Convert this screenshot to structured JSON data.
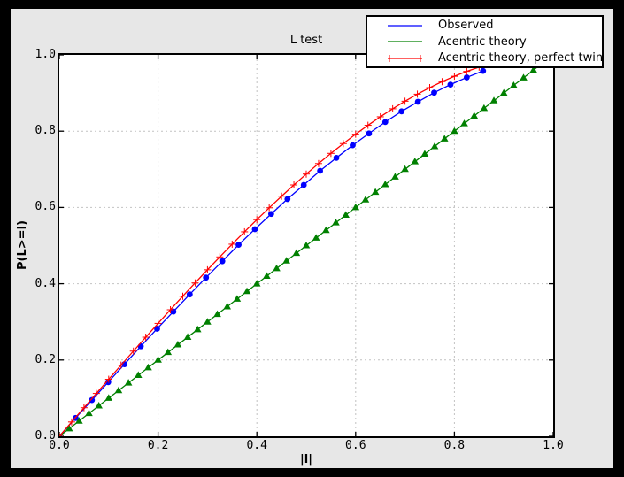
{
  "window": {
    "background": "#000000",
    "figure_background": "#e7e7e7",
    "plot_background": "#ffffff",
    "axis_color": "#000000"
  },
  "chart_data": {
    "type": "line",
    "title": "L test",
    "xlabel": "|l|",
    "ylabel": "P(L>=l)",
    "xlim": [
      0.0,
      1.0
    ],
    "ylim": [
      0.0,
      1.0
    ],
    "x_ticks": [
      0.0,
      0.2,
      0.4,
      0.6,
      0.8,
      1.0
    ],
    "y_ticks": [
      0.0,
      0.2,
      0.4,
      0.6,
      0.8,
      1.0
    ],
    "x_tick_labels": [
      "0.0",
      "0.2",
      "0.4",
      "0.6",
      "0.8",
      "1.0"
    ],
    "y_tick_labels": [
      "0.0",
      "0.2",
      "0.4",
      "0.6",
      "0.8",
      "1.0"
    ],
    "grid": "dashed",
    "grid_color": "#c2c2c2",
    "legend_position": "upper-right-overlapping-plot",
    "series": [
      {
        "name": "Observed",
        "color": "#0000ff",
        "marker": "circle",
        "legend_marker": "none",
        "x": [
          0,
          0.033,
          0.066,
          0.099,
          0.132,
          0.165,
          0.198,
          0.231,
          0.264,
          0.297,
          0.33,
          0.363,
          0.396,
          0.429,
          0.462,
          0.495,
          0.528,
          0.561,
          0.594,
          0.627,
          0.66,
          0.693,
          0.726,
          0.759,
          0.792,
          0.825,
          0.858
        ],
        "y": [
          0,
          0.048,
          0.095,
          0.142,
          0.189,
          0.236,
          0.282,
          0.327,
          0.372,
          0.416,
          0.459,
          0.502,
          0.543,
          0.583,
          0.622,
          0.659,
          0.696,
          0.73,
          0.763,
          0.794,
          0.824,
          0.852,
          0.877,
          0.901,
          0.922,
          0.941,
          0.958
        ]
      },
      {
        "name": "Acentric theory",
        "color": "#008000",
        "marker": "triangle",
        "legend_marker": "none",
        "x": [
          0,
          0.02,
          0.04,
          0.06,
          0.08,
          0.1,
          0.12,
          0.14,
          0.16,
          0.18,
          0.2,
          0.22,
          0.24,
          0.26,
          0.28,
          0.3,
          0.32,
          0.34,
          0.36,
          0.38,
          0.4,
          0.42,
          0.44,
          0.46,
          0.48,
          0.5,
          0.52,
          0.54,
          0.56,
          0.58,
          0.6,
          0.62,
          0.64,
          0.66,
          0.68,
          0.7,
          0.72,
          0.74,
          0.76,
          0.78,
          0.8,
          0.82,
          0.84,
          0.86,
          0.88,
          0.9,
          0.92,
          0.94,
          0.96,
          0.98,
          1.0
        ],
        "y": [
          0,
          0.02,
          0.04,
          0.06,
          0.08,
          0.1,
          0.12,
          0.14,
          0.16,
          0.18,
          0.2,
          0.22,
          0.24,
          0.26,
          0.28,
          0.3,
          0.32,
          0.34,
          0.36,
          0.38,
          0.4,
          0.42,
          0.44,
          0.46,
          0.48,
          0.5,
          0.52,
          0.54,
          0.56,
          0.58,
          0.6,
          0.62,
          0.64,
          0.66,
          0.68,
          0.7,
          0.72,
          0.74,
          0.76,
          0.78,
          0.8,
          0.82,
          0.84,
          0.86,
          0.88,
          0.9,
          0.92,
          0.94,
          0.96,
          0.98,
          1.0
        ]
      },
      {
        "name": "Acentric theory, perfect twin",
        "color": "#ff0000",
        "marker": "plus",
        "legend_marker": "plus",
        "x": [
          0,
          0.025,
          0.05,
          0.075,
          0.1,
          0.125,
          0.15,
          0.175,
          0.2,
          0.225,
          0.25,
          0.275,
          0.3,
          0.325,
          0.35,
          0.375,
          0.4,
          0.425,
          0.45,
          0.475,
          0.5,
          0.525,
          0.55,
          0.575,
          0.6,
          0.625,
          0.65,
          0.675,
          0.7,
          0.725,
          0.75,
          0.775,
          0.8,
          0.825,
          0.85,
          0.875,
          0.9,
          0.925,
          0.95,
          0.975,
          1.0
        ],
        "y": [
          0,
          0.0375,
          0.0749,
          0.1123,
          0.1495,
          0.1865,
          0.2233,
          0.2598,
          0.296,
          0.3318,
          0.3672,
          0.4021,
          0.4365,
          0.4703,
          0.5036,
          0.5361,
          0.568,
          0.5991,
          0.6294,
          0.6589,
          0.6875,
          0.7151,
          0.7418,
          0.7674,
          0.792,
          0.8154,
          0.8377,
          0.8587,
          0.8785,
          0.897,
          0.9141,
          0.9298,
          0.944,
          0.9567,
          0.9679,
          0.9775,
          0.9855,
          0.9918,
          0.9963,
          0.9991,
          1.0
        ]
      }
    ]
  }
}
